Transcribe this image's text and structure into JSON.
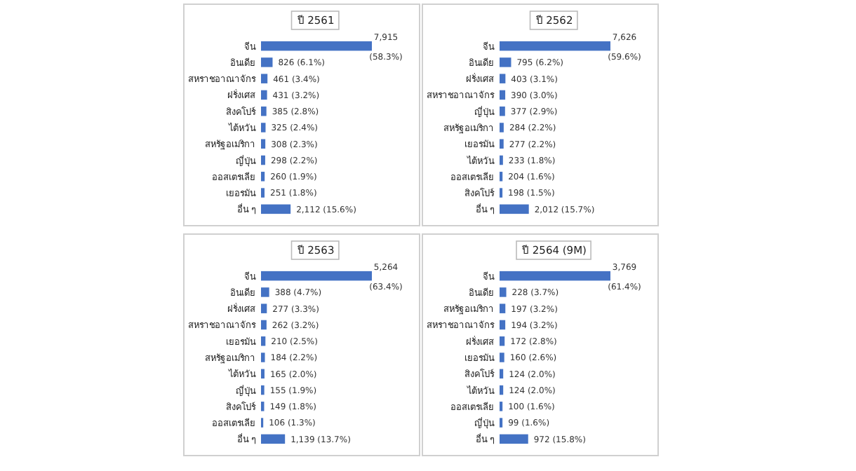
{
  "chart_data": [
    {
      "type": "bar",
      "orientation": "horizontal",
      "title": "ปี 2561",
      "color": "#4472c4",
      "categories": [
        "จีน",
        "อินเดีย",
        "สหราชอาณาจักร",
        "ฝรั่งเศส",
        "สิงคโปร์",
        "ไต้หวัน",
        "สหรัฐอเมริกา",
        "ญี่ปุ่น",
        "ออสเตรเลีย",
        "เยอรมัน",
        "อื่น ๆ"
      ],
      "values": [
        7915,
        826,
        461,
        431,
        385,
        325,
        308,
        298,
        260,
        251,
        2112
      ],
      "value_labels": [
        "7,915 (58.3%)",
        "826 (6.1%)",
        "461 (3.4%)",
        "431 (3.2%)",
        "385 (2.8%)",
        "325 (2.4%)",
        "308 (2.3%)",
        "298 (2.2%)",
        "260 (1.9%)",
        "251 (1.8%)",
        "2,112 (15.6%)"
      ]
    },
    {
      "type": "bar",
      "orientation": "horizontal",
      "title": "ปี 2562",
      "color": "#4472c4",
      "categories": [
        "จีน",
        "อินเดีย",
        "ฝรั่งเศส",
        "สหราชอาณาจักร",
        "ญี่ปุ่น",
        "สหรัฐอเมริกา",
        "เยอรมัน",
        "ไต้หวัน",
        "ออสเตรเลีย",
        "สิงคโปร์",
        "อื่น ๆ"
      ],
      "values": [
        7626,
        795,
        403,
        390,
        377,
        284,
        277,
        233,
        204,
        198,
        2012
      ],
      "value_labels": [
        "7,626 (59.6%)",
        "795 (6.2%)",
        "403 (3.1%)",
        "390 (3.0%)",
        "377 (2.9%)",
        "284 (2.2%)",
        "277 (2.2%)",
        "233 (1.8%)",
        "204 (1.6%)",
        "198 (1.5%)",
        "2,012 (15.7%)"
      ]
    },
    {
      "type": "bar",
      "orientation": "horizontal",
      "title": "ปี 2563",
      "color": "#4472c4",
      "categories": [
        "จีน",
        "อินเดีย",
        "ฝรั่งเศส",
        "สหราชอาณาจักร",
        "เยอรมัน",
        "สหรัฐอเมริกา",
        "ไต้หวัน",
        "ญี่ปุ่น",
        "สิงคโปร์",
        "ออสเตรเลีย",
        "อื่น ๆ"
      ],
      "values": [
        5264,
        388,
        277,
        262,
        210,
        184,
        165,
        155,
        149,
        106,
        1139
      ],
      "value_labels": [
        "5,264 (63.4%)",
        "388 (4.7%)",
        "277 (3.3%)",
        "262 (3.2%)",
        "210 (2.5%)",
        "184 (2.2%)",
        "165 (2.0%)",
        "155 (1.9%)",
        "149 (1.8%)",
        "106 (1.3%)",
        "1,139 (13.7%)"
      ]
    },
    {
      "type": "bar",
      "orientation": "horizontal",
      "title": "ปี 2564 (9M)",
      "color": "#4472c4",
      "categories": [
        "จีน",
        "อินเดีย",
        "สหรัฐอเมริกา",
        "สหราชอาณาจักร",
        "ฝรั่งเศส",
        "เยอรมัน",
        "สิงคโปร์",
        "ไต้หวัน",
        "ออสเตรเลีย",
        "ญี่ปุ่น",
        "อื่น ๆ"
      ],
      "values": [
        3769,
        228,
        197,
        194,
        172,
        160,
        124,
        124,
        100,
        99,
        972
      ],
      "value_labels": [
        "3,769 (61.4%)",
        "228 (3.7%)",
        "197 (3.2%)",
        "194 (3.2%)",
        "172 (2.8%)",
        "160 (2.6%)",
        "124 (2.0%)",
        "124 (2.0%)",
        "100 (1.6%)",
        "99 (1.6%)",
        "972 (15.8%)"
      ]
    }
  ]
}
